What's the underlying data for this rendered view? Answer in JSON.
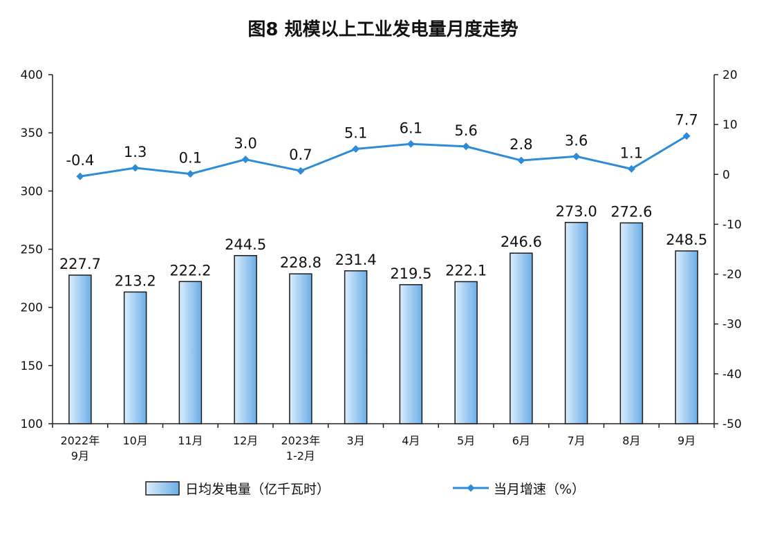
{
  "chart_data": {
    "title": "图8  规模以上工业发电量月度走势",
    "type": "bar+line",
    "categories": [
      [
        "2022年",
        "9月"
      ],
      [
        "10月"
      ],
      [
        "11月"
      ],
      [
        "12月"
      ],
      [
        "2023年",
        "1-2月"
      ],
      [
        "3月"
      ],
      [
        "4月"
      ],
      [
        "5月"
      ],
      [
        "6月"
      ],
      [
        "7月"
      ],
      [
        "8月"
      ],
      [
        "9月"
      ]
    ],
    "series": [
      {
        "name": "日均发电量（亿千瓦时）",
        "type": "bar",
        "axis": "left",
        "values": [
          227.7,
          213.2,
          222.2,
          244.5,
          228.8,
          231.4,
          219.5,
          222.1,
          246.6,
          273.0,
          272.6,
          248.5
        ],
        "labels": [
          "227.7",
          "213.2",
          "222.2",
          "244.5",
          "228.8",
          "231.4",
          "219.5",
          "222.1",
          "246.6",
          "273.0",
          "272.6",
          "248.5"
        ]
      },
      {
        "name": "当月增速（%）",
        "type": "line",
        "axis": "right",
        "values": [
          -0.4,
          1.3,
          0.1,
          3.0,
          0.7,
          5.1,
          6.1,
          5.6,
          2.8,
          3.6,
          1.1,
          7.7
        ],
        "labels": [
          "-0.4",
          "1.3",
          "0.1",
          "3.0",
          "0.7",
          "5.1",
          "6.1",
          "5.6",
          "2.8",
          "3.6",
          "1.1",
          "7.7"
        ]
      }
    ],
    "y_left": {
      "min": 100,
      "max": 400,
      "ticks": [
        "100",
        "150",
        "200",
        "250",
        "300",
        "350",
        "400"
      ]
    },
    "y_right": {
      "min": -50,
      "max": 20,
      "ticks": [
        "-50",
        "-40",
        "-30",
        "-20",
        "-10",
        "0",
        "10",
        "20"
      ]
    },
    "legend_position": "bottom",
    "grid": false,
    "colors": {
      "bar_fill_top": "#dcedfb",
      "bar_fill_bottom": "#6aaee8",
      "bar_stroke": "#1a1a1a",
      "line": "#2e8bd8",
      "axis": "#222222",
      "text": "#111111"
    }
  }
}
